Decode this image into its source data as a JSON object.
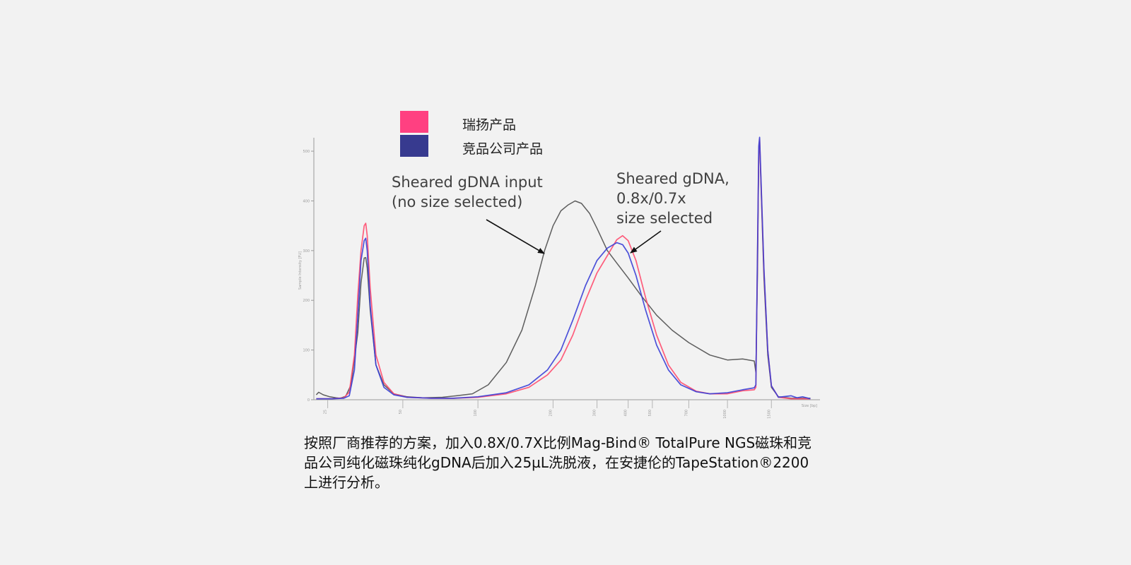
{
  "chart_data": {
    "type": "line",
    "title": "",
    "xlabel": "Size [bp]",
    "ylabel": "Sample Intensity [FU]",
    "x_scale": "log",
    "xlim": [
      22,
      2200
    ],
    "ylim": [
      0,
      520
    ],
    "y_ticks": [
      0,
      100,
      200,
      300,
      400,
      500
    ],
    "x_ticks": [
      25,
      50,
      100,
      200,
      300,
      400,
      500,
      700,
      1000,
      1500
    ],
    "legend": {
      "placement": "top-left",
      "entries": [
        {
          "label": "瑞扬产品",
          "color": "#ff4081"
        },
        {
          "label": "竞品公司产品",
          "color": "#373a8f"
        }
      ]
    },
    "series": [
      {
        "name": "Sheared gDNA input (no size selected)",
        "color": "#5e5e5e",
        "points": [
          [
            22.5,
            10
          ],
          [
            23,
            15
          ],
          [
            24,
            10
          ],
          [
            25.5,
            6
          ],
          [
            27,
            4
          ],
          [
            28,
            3
          ],
          [
            29.5,
            7
          ],
          [
            31,
            30
          ],
          [
            33,
            135
          ],
          [
            34,
            235
          ],
          [
            35,
            285
          ],
          [
            35.5,
            286
          ],
          [
            36,
            265
          ],
          [
            37,
            180
          ],
          [
            39,
            70
          ],
          [
            42,
            30
          ],
          [
            46,
            12
          ],
          [
            52,
            6
          ],
          [
            60,
            4
          ],
          [
            72,
            5
          ],
          [
            82,
            8
          ],
          [
            95,
            12
          ],
          [
            110,
            30
          ],
          [
            130,
            75
          ],
          [
            150,
            140
          ],
          [
            170,
            230
          ],
          [
            185,
            300
          ],
          [
            200,
            350
          ],
          [
            215,
            380
          ],
          [
            230,
            392
          ],
          [
            245,
            400
          ],
          [
            260,
            395
          ],
          [
            280,
            375
          ],
          [
            300,
            345
          ],
          [
            330,
            300
          ],
          [
            360,
            275
          ],
          [
            400,
            245
          ],
          [
            450,
            210
          ],
          [
            520,
            170
          ],
          [
            600,
            140
          ],
          [
            700,
            115
          ],
          [
            850,
            90
          ],
          [
            1000,
            80
          ],
          [
            1150,
            82
          ],
          [
            1280,
            78
          ],
          [
            1300,
            55
          ],
          [
            1320,
            260
          ],
          [
            1335,
            495
          ],
          [
            1345,
            520
          ],
          [
            1360,
            440
          ],
          [
            1400,
            245
          ],
          [
            1450,
            90
          ],
          [
            1500,
            25
          ],
          [
            1600,
            6
          ],
          [
            1800,
            3
          ],
          [
            2000,
            3
          ],
          [
            2150,
            3
          ]
        ]
      },
      {
        "name": "瑞扬产品 (0.8x/0.7x size selected)",
        "color": "#ff4b6e",
        "points": [
          [
            22.5,
            2
          ],
          [
            26,
            2
          ],
          [
            29,
            4
          ],
          [
            30.5,
            15
          ],
          [
            32,
            90
          ],
          [
            33,
            210
          ],
          [
            34,
            300
          ],
          [
            35,
            350
          ],
          [
            35.5,
            355
          ],
          [
            36,
            330
          ],
          [
            37,
            225
          ],
          [
            39,
            90
          ],
          [
            42,
            35
          ],
          [
            46,
            12
          ],
          [
            52,
            5
          ],
          [
            65,
            3
          ],
          [
            80,
            3
          ],
          [
            100,
            5
          ],
          [
            130,
            12
          ],
          [
            160,
            25
          ],
          [
            190,
            50
          ],
          [
            215,
            80
          ],
          [
            240,
            130
          ],
          [
            270,
            200
          ],
          [
            300,
            255
          ],
          [
            330,
            290
          ],
          [
            360,
            322
          ],
          [
            380,
            330
          ],
          [
            400,
            320
          ],
          [
            430,
            280
          ],
          [
            470,
            205
          ],
          [
            520,
            130
          ],
          [
            580,
            70
          ],
          [
            650,
            35
          ],
          [
            750,
            17
          ],
          [
            850,
            12
          ],
          [
            1000,
            12
          ],
          [
            1150,
            18
          ],
          [
            1280,
            20
          ],
          [
            1300,
            25
          ],
          [
            1320,
            300
          ],
          [
            1335,
            500
          ],
          [
            1345,
            525
          ],
          [
            1360,
            450
          ],
          [
            1400,
            260
          ],
          [
            1450,
            100
          ],
          [
            1500,
            28
          ],
          [
            1600,
            5
          ],
          [
            1800,
            2
          ],
          [
            2000,
            2
          ],
          [
            2150,
            2
          ]
        ]
      },
      {
        "name": "竞品公司产品 (0.8x/0.7x size selected)",
        "color": "#3a3fd6",
        "points": [
          [
            22.5,
            2
          ],
          [
            26,
            2
          ],
          [
            29,
            3
          ],
          [
            30.5,
            8
          ],
          [
            32,
            60
          ],
          [
            33,
            170
          ],
          [
            34,
            280
          ],
          [
            35,
            320
          ],
          [
            35.5,
            325
          ],
          [
            36,
            300
          ],
          [
            37,
            190
          ],
          [
            39,
            70
          ],
          [
            42,
            25
          ],
          [
            46,
            10
          ],
          [
            52,
            5
          ],
          [
            65,
            3
          ],
          [
            80,
            3
          ],
          [
            100,
            6
          ],
          [
            130,
            14
          ],
          [
            160,
            30
          ],
          [
            190,
            60
          ],
          [
            215,
            100
          ],
          [
            240,
            160
          ],
          [
            270,
            230
          ],
          [
            300,
            280
          ],
          [
            330,
            305
          ],
          [
            360,
            316
          ],
          [
            380,
            312
          ],
          [
            400,
            295
          ],
          [
            430,
            250
          ],
          [
            470,
            180
          ],
          [
            520,
            110
          ],
          [
            580,
            60
          ],
          [
            650,
            30
          ],
          [
            750,
            16
          ],
          [
            850,
            12
          ],
          [
            1000,
            14
          ],
          [
            1150,
            20
          ],
          [
            1280,
            24
          ],
          [
            1300,
            30
          ],
          [
            1320,
            310
          ],
          [
            1335,
            510
          ],
          [
            1345,
            528
          ],
          [
            1360,
            455
          ],
          [
            1400,
            265
          ],
          [
            1450,
            100
          ],
          [
            1500,
            28
          ],
          [
            1600,
            5
          ],
          [
            1800,
            8
          ],
          [
            1900,
            4
          ],
          [
            2000,
            6
          ],
          [
            2150,
            2
          ]
        ]
      }
    ]
  },
  "legend_items": [
    {
      "label": "瑞扬产品",
      "color": "#ff4081"
    },
    {
      "label": "竞品公司产品",
      "color": "#373a8f"
    }
  ],
  "annotations": {
    "input": "Sheared gDNA input\n(no size selected)",
    "selected": "Sheared gDNA,\n0.8x/0.7x\nsize selected"
  },
  "caption": "按照厂商推荐的方案，加入0.8X/0.7X比例Mag-Bind® TotalPure NGS磁珠和竞品公司纯化磁珠纯化gDNA后加入25µL洗脱液，在安捷伦的TapeStation®2200上进行分析。"
}
